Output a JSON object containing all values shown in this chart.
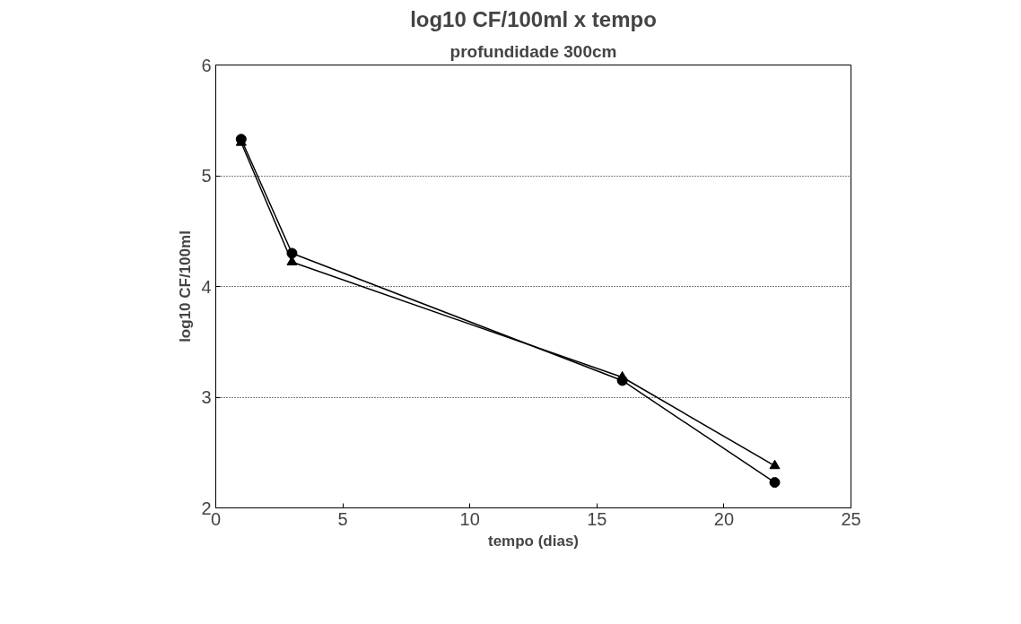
{
  "chart_data": {
    "type": "line",
    "title": "log10 CF/100ml x tempo",
    "subtitle": "profundidade 300cm",
    "xlabel": "tempo (dias)",
    "ylabel": "log10 CF/100ml",
    "x": [
      1,
      3,
      16,
      22
    ],
    "series": [
      {
        "color": "#000000",
        "marker": "circle",
        "values": [
          5.33,
          4.3,
          3.15,
          2.23
        ]
      },
      {
        "color": "#000000",
        "marker": "triangle",
        "values": [
          5.3,
          4.22,
          3.18,
          2.38
        ]
      }
    ],
    "xlim": [
      0,
      25
    ],
    "xticks": [
      0,
      5,
      10,
      15,
      20,
      25
    ],
    "ylim": [
      2,
      6
    ],
    "yticks": [
      2,
      3,
      4,
      5,
      6
    ],
    "grid": "y",
    "line_style": "solid"
  }
}
